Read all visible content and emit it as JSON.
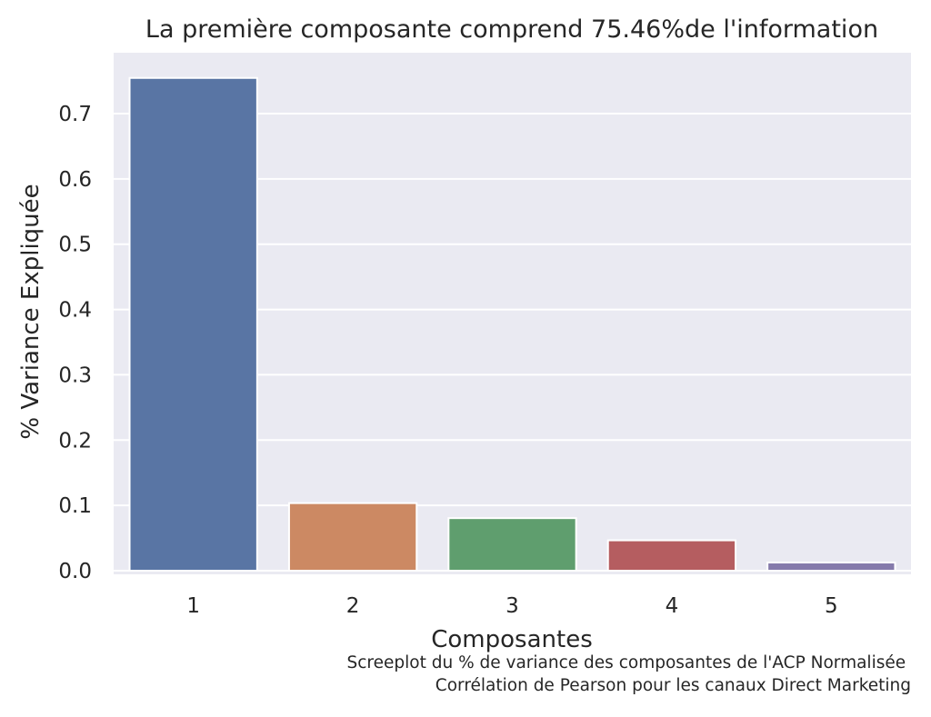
{
  "chart_data": {
    "type": "bar",
    "title": "La première composante comprend 75.46%de l'information",
    "xlabel": "Composantes",
    "ylabel": "% Variance Expliquée",
    "categories": [
      "1",
      "2",
      "3",
      "4",
      "5"
    ],
    "values": [
      0.7546,
      0.1035,
      0.0805,
      0.0465,
      0.0125
    ],
    "colors": [
      "#5975a4",
      "#cc8963",
      "#5f9e6e",
      "#b55d60",
      "#857aab"
    ],
    "ylim": [
      0,
      0.76
    ],
    "yticks": [
      0.0,
      0.1,
      0.2,
      0.3,
      0.4,
      0.5,
      0.6,
      0.7
    ],
    "ytick_labels": [
      "0.0",
      "0.1",
      "0.2",
      "0.3",
      "0.4",
      "0.5",
      "0.6",
      "0.7"
    ],
    "grid": true,
    "background": "#eaeaf2",
    "caption_lines": [
      "Screeplot du % de variance des composantes de l'ACP Normalisée ",
      "Corrélation de Pearson pour les canaux Direct Marketing"
    ]
  }
}
